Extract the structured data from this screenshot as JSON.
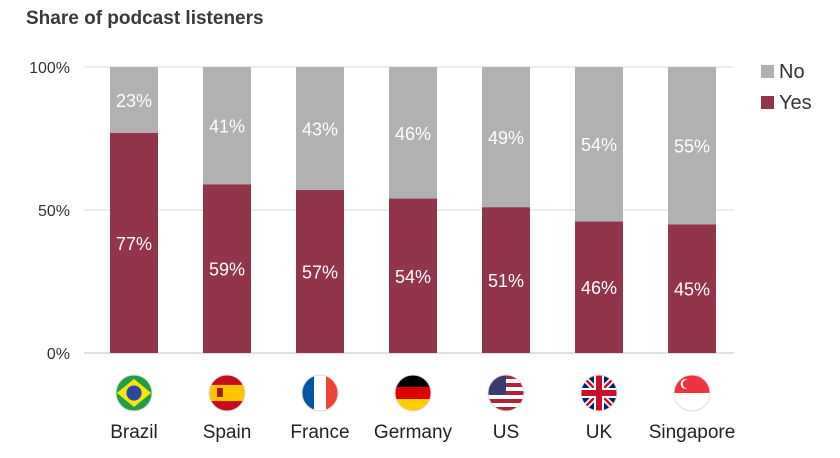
{
  "title": "Share of podcast listeners",
  "colors": {
    "yes": "#92344a",
    "no": "#b1b1b1",
    "grid": "#d9d9d9"
  },
  "chart_data": {
    "type": "bar",
    "stacked": true,
    "title": "Share of podcast listeners",
    "xlabel": "",
    "ylabel": "",
    "ylim": [
      0,
      100
    ],
    "y_ticks": [
      "0%",
      "50%",
      "100%"
    ],
    "grid": true,
    "legend_position": "top-right",
    "categories": [
      "Brazil",
      "Spain",
      "France",
      "Germany",
      "US",
      "UK",
      "Singapore"
    ],
    "category_icons": [
      "brazil-flag",
      "spain-flag",
      "france-flag",
      "germany-flag",
      "usa-flag",
      "uk-flag",
      "singapore-flag"
    ],
    "series": [
      {
        "name": "Yes",
        "values": [
          77,
          59,
          57,
          54,
          51,
          46,
          45
        ],
        "labels": [
          "77%",
          "59%",
          "57%",
          "54%",
          "51%",
          "46%",
          "45%"
        ]
      },
      {
        "name": "No",
        "values": [
          23,
          41,
          43,
          46,
          49,
          54,
          55
        ],
        "labels": [
          "23%",
          "41%",
          "43%",
          "46%",
          "49%",
          "54%",
          "55%"
        ]
      }
    ],
    "legend": [
      "No",
      "Yes"
    ]
  }
}
